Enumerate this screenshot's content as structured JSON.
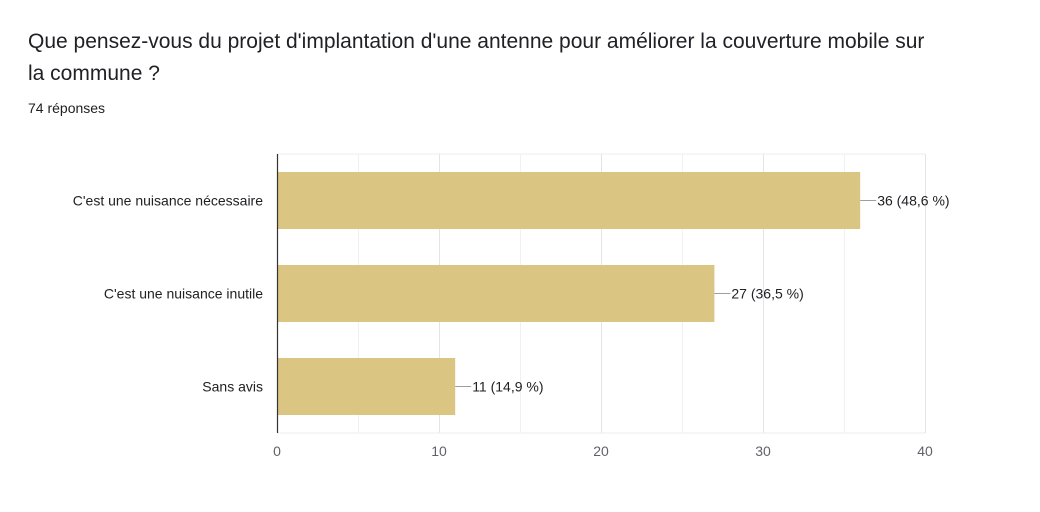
{
  "question": {
    "title": "Que pensez-vous du projet d'implantation d'une antenne pour améliorer la couverture mobile sur la commune ?",
    "response_count": "74 réponses"
  },
  "colors": {
    "bar": "#dbc583",
    "grid": "#ececec",
    "axis": "#333333",
    "text": "#202124",
    "tick_text": "#5f6368"
  },
  "chart_data": {
    "type": "bar",
    "orientation": "horizontal",
    "categories": [
      "C'est une nuisance nécessaire",
      "C'est une nuisance inutile",
      "Sans avis"
    ],
    "values": [
      36,
      27,
      11
    ],
    "data_labels": [
      "36 (48,6 %)",
      "27 (36,5 %)",
      "11 (14,9 %)"
    ],
    "xlim": [
      0,
      40
    ],
    "xticks": [
      0,
      10,
      20,
      30,
      40
    ],
    "xtick_labels": [
      "0",
      "10",
      "20",
      "30",
      "40"
    ],
    "grid": true,
    "title": "",
    "xlabel": "",
    "ylabel": ""
  }
}
